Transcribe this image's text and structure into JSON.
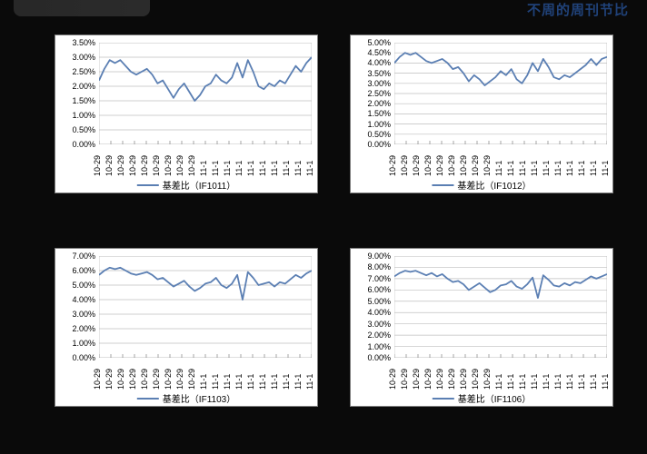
{
  "header": {
    "right_text": "不周的周刊节比"
  },
  "globals": {
    "line_color": "#5b7fb3",
    "line_width": 1.8,
    "grid_color": "#bfbfbf",
    "axis_color": "#808080",
    "bg_color": "#ffffff",
    "tick_fontsize": 9,
    "legend_prefix": "基差比"
  },
  "x_axis": {
    "labels": [
      "10-29",
      "10-29",
      "10-29",
      "10-29",
      "10-29",
      "10-29",
      "10-29",
      "10-29",
      "10-29",
      "11-1",
      "11-1",
      "11-1",
      "11-1",
      "11-1",
      "11-1",
      "11-1",
      "11-1",
      "11-1",
      "11-1"
    ],
    "count": 41
  },
  "charts": [
    {
      "id": "IF1011",
      "legend": "（IF1011）",
      "ymin": 0.0,
      "ymax": 3.5,
      "ystep": 0.5,
      "decimals": 2,
      "values": [
        2.2,
        2.6,
        2.9,
        2.8,
        2.9,
        2.7,
        2.5,
        2.4,
        2.5,
        2.6,
        2.4,
        2.1,
        2.2,
        1.9,
        1.6,
        1.9,
        2.1,
        1.8,
        1.5,
        1.7,
        2.0,
        2.1,
        2.4,
        2.2,
        2.1,
        2.3,
        2.8,
        2.3,
        2.9,
        2.5,
        2.0,
        1.9,
        2.1,
        2.0,
        2.2,
        2.1,
        2.4,
        2.7,
        2.5,
        2.8,
        3.0
      ]
    },
    {
      "id": "IF1012",
      "legend": "（IF1012）",
      "ymin": 0.0,
      "ymax": 5.0,
      "ystep": 0.5,
      "decimals": 2,
      "values": [
        4.0,
        4.3,
        4.5,
        4.4,
        4.5,
        4.3,
        4.1,
        4.0,
        4.1,
        4.2,
        4.0,
        3.7,
        3.8,
        3.5,
        3.1,
        3.4,
        3.2,
        2.9,
        3.1,
        3.3,
        3.6,
        3.4,
        3.7,
        3.2,
        3.0,
        3.4,
        4.0,
        3.6,
        4.2,
        3.8,
        3.3,
        3.2,
        3.4,
        3.3,
        3.5,
        3.7,
        3.9,
        4.2,
        3.9,
        4.2,
        4.3
      ]
    },
    {
      "id": "IF1103",
      "legend": "（IF1103）",
      "ymin": 0.0,
      "ymax": 7.0,
      "ystep": 1.0,
      "decimals": 2,
      "values": [
        5.7,
        6.0,
        6.2,
        6.1,
        6.2,
        6.0,
        5.8,
        5.7,
        5.8,
        5.9,
        5.7,
        5.4,
        5.5,
        5.2,
        4.9,
        5.1,
        5.3,
        4.9,
        4.6,
        4.8,
        5.1,
        5.2,
        5.5,
        5.0,
        4.8,
        5.1,
        5.7,
        4.0,
        5.9,
        5.5,
        5.0,
        5.1,
        5.2,
        4.9,
        5.2,
        5.1,
        5.4,
        5.7,
        5.5,
        5.8,
        6.0
      ]
    },
    {
      "id": "IF1106",
      "legend": "（IF1106）",
      "ymin": 0.0,
      "ymax": 9.0,
      "ystep": 1.0,
      "decimals": 2,
      "values": [
        7.2,
        7.5,
        7.7,
        7.6,
        7.7,
        7.5,
        7.3,
        7.5,
        7.2,
        7.4,
        7.0,
        6.7,
        6.8,
        6.5,
        6.0,
        6.3,
        6.6,
        6.2,
        5.8,
        6.0,
        6.4,
        6.5,
        6.8,
        6.3,
        6.1,
        6.5,
        7.1,
        5.3,
        7.3,
        6.9,
        6.4,
        6.3,
        6.6,
        6.4,
        6.7,
        6.6,
        6.9,
        7.2,
        7.0,
        7.2,
        7.4
      ]
    }
  ]
}
